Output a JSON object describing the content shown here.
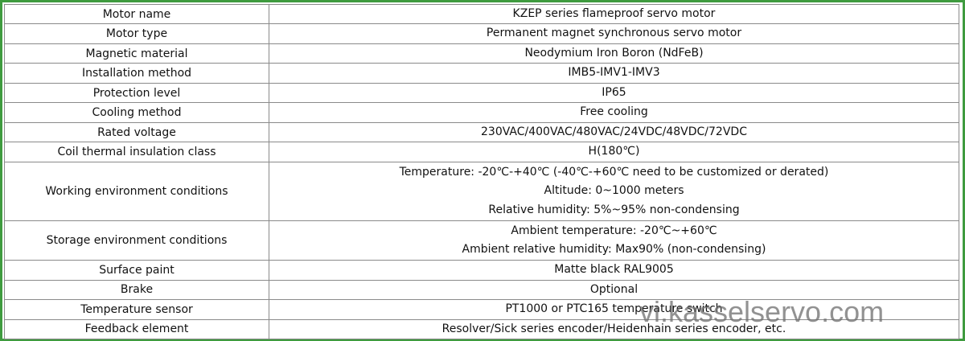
{
  "table": {
    "rows": [
      {
        "label": "Motor name",
        "lines": [
          "KZEP series flameproof servo motor"
        ]
      },
      {
        "label": "Motor type",
        "lines": [
          "Permanent magnet synchronous servo motor"
        ]
      },
      {
        "label": "Magnetic material",
        "lines": [
          "Neodymium Iron Boron (NdFeB)"
        ]
      },
      {
        "label": "Installation method",
        "lines": [
          "IMB5-IMV1-IMV3"
        ]
      },
      {
        "label": "Protection level",
        "lines": [
          "IP65"
        ]
      },
      {
        "label": "Cooling method",
        "lines": [
          "Free cooling"
        ]
      },
      {
        "label": "Rated voltage",
        "lines": [
          "230VAC/400VAC/480VAC/24VDC/48VDC/72VDC"
        ]
      },
      {
        "label": "Coil thermal insulation class",
        "lines": [
          "H(180℃)"
        ]
      },
      {
        "label": "Working environment conditions",
        "lines": [
          "Temperature: -20℃-+40℃ (-40℃-+60℃ need to be customized or derated)",
          "Altitude: 0~1000 meters",
          "Relative humidity: 5%~95% non-condensing"
        ]
      },
      {
        "label": "Storage environment conditions",
        "lines": [
          "Ambient temperature: -20℃~+60℃",
          "Ambient relative humidity: Max90% (non-condensing)"
        ]
      },
      {
        "label": "Surface paint",
        "lines": [
          "Matte black RAL9005"
        ]
      },
      {
        "label": "Brake",
        "lines": [
          "Optional"
        ]
      },
      {
        "label": "Temperature sensor",
        "lines": [
          "PT1000 or PTC165 temperature switch"
        ]
      },
      {
        "label": "Feedback element",
        "lines": [
          "Resolver/Sick series encoder/Heidenhain series encoder, etc."
        ]
      }
    ]
  },
  "watermark": "vi.kasselservo.com"
}
